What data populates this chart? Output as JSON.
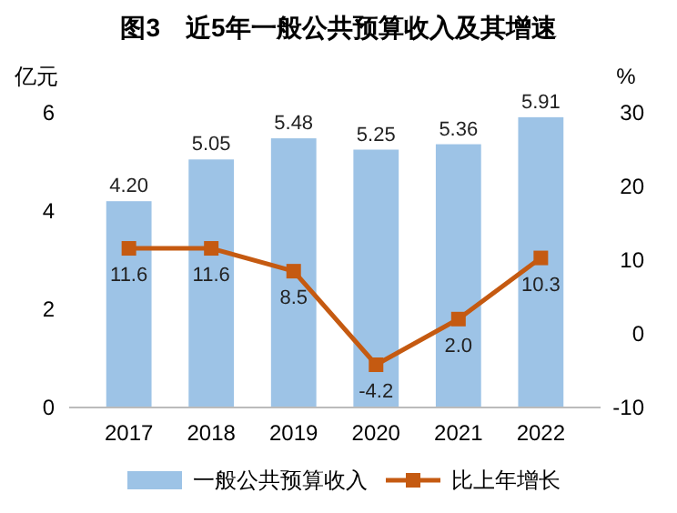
{
  "chart_data": {
    "type": "bar",
    "title": "图3　近5年一般公共预算收入及其增速",
    "xlabel": null,
    "ylabel": "亿元",
    "y2label": "%",
    "categories": [
      "2017",
      "2018",
      "2019",
      "2020",
      "2021",
      "2022"
    ],
    "series": [
      {
        "name": "一般公共预算收入",
        "color": "#9dc3e6",
        "values": [
          4.2,
          5.05,
          5.48,
          5.25,
          5.36,
          5.91
        ],
        "value_labels": [
          "4.20",
          "5.05",
          "5.48",
          "5.25",
          "5.36",
          "5.91"
        ]
      },
      {
        "name": "比上年增长",
        "type": "line",
        "axis": "y2",
        "color": "#c55a11",
        "marker": "square",
        "values": [
          11.6,
          11.6,
          8.5,
          -4.2,
          2.0,
          10.3
        ],
        "value_labels": [
          "11.6",
          "11.6",
          "8.5",
          "-4.2",
          "2.0",
          "10.3"
        ]
      }
    ],
    "ylim": [
      0,
      6
    ],
    "yticks": [
      0,
      2,
      4,
      6
    ],
    "y2lim": [
      -10,
      30
    ],
    "y2ticks": [
      -10,
      0,
      10,
      20,
      30
    ],
    "legend": "bottom",
    "grid": false
  }
}
